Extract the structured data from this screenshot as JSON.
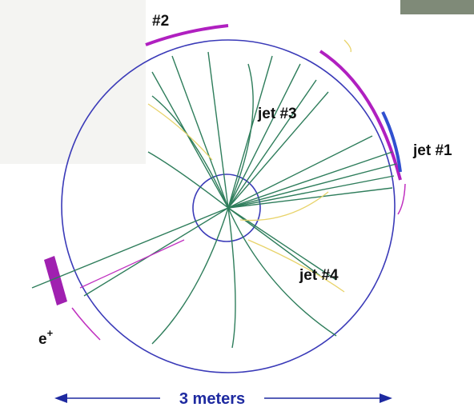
{
  "labels": [
    {
      "text": "#2"
    },
    {
      "text": "jet #3"
    },
    {
      "text": "jet #1"
    },
    {
      "text": "jet #4"
    },
    {
      "text": "e",
      "superscript": "+"
    }
  ],
  "scale": {
    "text": "3 meters"
  }
}
